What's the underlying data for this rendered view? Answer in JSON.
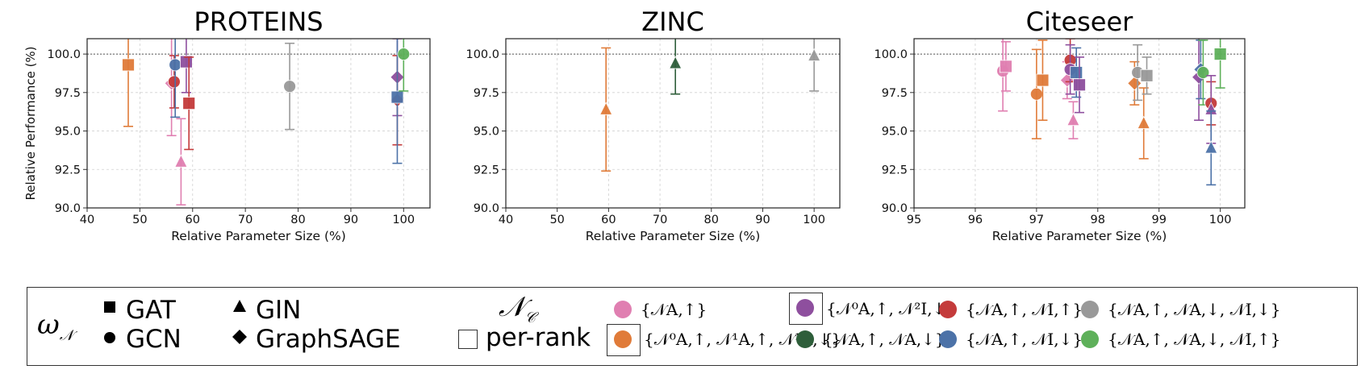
{
  "colors": {
    "pink": "#e07fb1",
    "orange": "#e07b39",
    "purple": "#8e4f9e",
    "darkgreen": "#2e5e3a",
    "red": "#c43b3b",
    "blue": "#4c72a8",
    "gray": "#999999",
    "green": "#5eb05a"
  },
  "chart_data": [
    {
      "type": "scatter",
      "title": "PROTEINS",
      "xlabel": "Relative Parameter Size (%)",
      "ylabel": "Relative Performance (%)",
      "xlim": [
        40,
        105
      ],
      "ylim": [
        90,
        101
      ],
      "xticks": [
        "40",
        "50",
        "60",
        "70",
        "80",
        "90",
        "100"
      ],
      "yticks": [
        "90.0",
        "92.5",
        "95.0",
        "97.5",
        "100.0"
      ],
      "grid": true,
      "reference_line": 100,
      "points": [
        {
          "x": 47.8,
          "y": 99.3,
          "err": 4.0,
          "marker": "square",
          "color": "orange"
        },
        {
          "x": 56.0,
          "y": 98.1,
          "err": 3.4,
          "marker": "diamond",
          "color": "pink"
        },
        {
          "x": 56.5,
          "y": 98.2,
          "err": 1.7,
          "marker": "circle",
          "color": "red"
        },
        {
          "x": 56.7,
          "y": 99.3,
          "err": 3.4,
          "marker": "circle",
          "color": "blue"
        },
        {
          "x": 57.8,
          "y": 93.0,
          "err": 2.8,
          "marker": "triangle",
          "color": "pink"
        },
        {
          "x": 58.8,
          "y": 99.5,
          "err": 2.0,
          "marker": "square",
          "color": "purple"
        },
        {
          "x": 59.3,
          "y": 96.8,
          "err": 3.0,
          "marker": "square",
          "color": "red"
        },
        {
          "x": 78.4,
          "y": 97.9,
          "err": 2.8,
          "marker": "circle",
          "color": "gray"
        },
        {
          "x": 98.8,
          "y": 98.5,
          "err": 2.5,
          "marker": "diamond",
          "color": "purple"
        },
        {
          "x": 98.8,
          "y": 97.0,
          "err": 2.9,
          "marker": "diamond",
          "color": "red"
        },
        {
          "x": 98.8,
          "y": 97.2,
          "err": 4.3,
          "marker": "square",
          "color": "blue"
        },
        {
          "x": 100.0,
          "y": 100.0,
          "err": 2.4,
          "marker": "circle",
          "color": "green"
        }
      ]
    },
    {
      "type": "scatter",
      "title": "ZINC",
      "xlabel": "Relative Parameter Size (%)",
      "ylabel": "",
      "xlim": [
        40,
        105
      ],
      "ylim": [
        90,
        101
      ],
      "xticks": [
        "40",
        "50",
        "60",
        "70",
        "80",
        "90",
        "100"
      ],
      "yticks": [
        "90.0",
        "92.5",
        "95.0",
        "97.5",
        "100.0"
      ],
      "grid": true,
      "reference_line": 100,
      "points": [
        {
          "x": 59.5,
          "y": 96.4,
          "err": 4.0,
          "marker": "triangle",
          "color": "orange"
        },
        {
          "x": 73.0,
          "y": 99.4,
          "err": 2.0,
          "marker": "triangle",
          "color": "darkgreen"
        },
        {
          "x": 100.0,
          "y": 99.9,
          "err": 2.3,
          "marker": "triangle",
          "color": "gray"
        }
      ]
    },
    {
      "type": "scatter",
      "title": "Citeseer",
      "xlabel": "Relative Parameter Size (%)",
      "ylabel": "",
      "xlim": [
        95,
        100.4
      ],
      "ylim": [
        90,
        101
      ],
      "xticks": [
        "95",
        "96",
        "97",
        "98",
        "99",
        "100"
      ],
      "yticks": [
        "90.0",
        "92.5",
        "95.0",
        "97.5",
        "100.0"
      ],
      "grid": true,
      "reference_line": 100,
      "points": [
        {
          "x": 96.45,
          "y": 98.9,
          "err": 2.6,
          "marker": "circle",
          "color": "pink"
        },
        {
          "x": 96.5,
          "y": 99.2,
          "err": 1.6,
          "marker": "square",
          "color": "pink"
        },
        {
          "x": 97.0,
          "y": 97.4,
          "err": 2.9,
          "marker": "circle",
          "color": "orange"
        },
        {
          "x": 97.1,
          "y": 98.3,
          "err": 2.6,
          "marker": "square",
          "color": "orange"
        },
        {
          "x": 97.5,
          "y": 98.3,
          "err": 1.2,
          "marker": "diamond",
          "color": "pink"
        },
        {
          "x": 97.55,
          "y": 99.6,
          "err": 1.4,
          "marker": "circle",
          "color": "red"
        },
        {
          "x": 97.55,
          "y": 99.0,
          "err": 1.6,
          "marker": "circle",
          "color": "purple"
        },
        {
          "x": 97.6,
          "y": 95.7,
          "err": 1.2,
          "marker": "triangle",
          "color": "pink"
        },
        {
          "x": 97.65,
          "y": 98.8,
          "err": 1.6,
          "marker": "square",
          "color": "blue"
        },
        {
          "x": 97.7,
          "y": 98.0,
          "err": 1.8,
          "marker": "square",
          "color": "purple"
        },
        {
          "x": 98.6,
          "y": 98.1,
          "err": 1.4,
          "marker": "diamond",
          "color": "orange"
        },
        {
          "x": 98.65,
          "y": 98.8,
          "err": 1.8,
          "marker": "circle",
          "color": "gray"
        },
        {
          "x": 98.75,
          "y": 95.5,
          "err": 2.3,
          "marker": "triangle",
          "color": "orange"
        },
        {
          "x": 98.8,
          "y": 98.6,
          "err": 1.2,
          "marker": "square",
          "color": "gray"
        },
        {
          "x": 99.65,
          "y": 98.5,
          "err": 2.8,
          "marker": "diamond",
          "color": "purple"
        },
        {
          "x": 99.68,
          "y": 99.0,
          "err": 1.9,
          "marker": "diamond",
          "color": "blue"
        },
        {
          "x": 99.72,
          "y": 98.8,
          "err": 2.1,
          "marker": "circle",
          "color": "green"
        },
        {
          "x": 99.85,
          "y": 96.8,
          "err": 1.4,
          "marker": "circle",
          "color": "red"
        },
        {
          "x": 99.85,
          "y": 96.4,
          "err": 2.2,
          "marker": "triangle",
          "color": "purple"
        },
        {
          "x": 99.85,
          "y": 93.9,
          "err": 2.4,
          "marker": "triangle",
          "color": "blue"
        },
        {
          "x": 100.0,
          "y": 100.0,
          "err": 2.2,
          "marker": "square",
          "color": "green"
        }
      ]
    }
  ],
  "legend": {
    "omega_label": "ω",
    "omega_sub": "𝒩",
    "markers": [
      {
        "shape": "square",
        "label": "GAT"
      },
      {
        "shape": "circle",
        "label": "GCN"
      },
      {
        "shape": "triangle",
        "label": "GIN"
      },
      {
        "shape": "diamond",
        "label": "GraphSAGE"
      }
    ],
    "nc_label": "𝒩",
    "nc_sub": "𝒞",
    "per_rank_label": "per-rank",
    "entries": [
      {
        "color": "pink",
        "label": "{𝒩A,↑}",
        "boxed": false
      },
      {
        "color": "orange",
        "label": "{𝒩⁰A,↑, 𝒩¹A,↑, 𝒩¹A,↓}",
        "boxed": true
      },
      {
        "color": "purple",
        "label": "{𝒩⁰A,↑, 𝒩²I,↓}",
        "boxed": true
      },
      {
        "color": "darkgreen",
        "label": "{𝒩A,↑, 𝒩A,↓}",
        "boxed": false
      },
      {
        "color": "red",
        "label": "{𝒩A,↑, 𝒩I,↑}",
        "boxed": false
      },
      {
        "color": "blue",
        "label": "{𝒩A,↑, 𝒩I,↓}",
        "boxed": false
      },
      {
        "color": "gray",
        "label": "{𝒩A,↑, 𝒩A,↓, 𝒩I,↓}",
        "boxed": false
      },
      {
        "color": "green",
        "label": "{𝒩A,↑, 𝒩A,↓, 𝒩I,↑}",
        "boxed": false
      }
    ]
  }
}
